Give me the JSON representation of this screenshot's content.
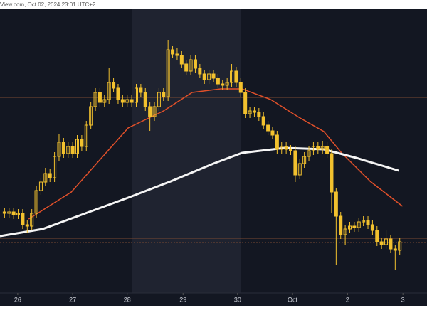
{
  "header": "View.com, Oct 02, 2024 23:01 UTC+2",
  "chart_data": {
    "type": "candlestick",
    "xlim": [
      -1,
      93
    ],
    "ylim": [
      0,
      100
    ],
    "xticks": [
      {
        "value": 2.9,
        "label": "26"
      },
      {
        "value": 15,
        "label": "27"
      },
      {
        "value": 27,
        "label": "28"
      },
      {
        "value": 39.3,
        "label": "29"
      },
      {
        "value": 51.3,
        "label": "30"
      },
      {
        "value": 63.4,
        "label": "Oct"
      },
      {
        "value": 75.5,
        "label": "2"
      },
      {
        "value": 87.7,
        "label": "3"
      }
    ],
    "color": "#f2c12e",
    "open": [
      30.5,
      30,
      30.5,
      29.5,
      30,
      26,
      25.5,
      30,
      38,
      41,
      44,
      42.5,
      50,
      55,
      51,
      53.5,
      51,
      56,
      53.5,
      61,
      67.5,
      72.5,
      69,
      70,
      76,
      74,
      70,
      69,
      70,
      69,
      74,
      72.5,
      67.5,
      64,
      67.5,
      72.5,
      71,
      87.5,
      86,
      85.5,
      82.5,
      80,
      84,
      81,
      79,
      77,
      79,
      77.5,
      75.5,
      75,
      76,
      80,
      76,
      72.5,
      65,
      66,
      65.5,
      64,
      61,
      59,
      57.5,
      52.5,
      53.5,
      52.5,
      52,
      43.5,
      47.5,
      50,
      52,
      53.5,
      52.5,
      53.5,
      51,
      37.5,
      29,
      22.5,
      24.5,
      25.5,
      25,
      27,
      27.5,
      26,
      24,
      20,
      19,
      21,
      17.5,
      17
    ],
    "high": [
      32,
      32,
      32,
      31.5,
      31.5,
      27.5,
      31.5,
      39.5,
      42.5,
      46,
      45.5,
      51.5,
      58,
      56.5,
      55,
      55,
      57.5,
      57.5,
      62.5,
      69,
      74,
      74,
      71.5,
      81,
      77.5,
      75.5,
      71.5,
      71.5,
      71.5,
      75.5,
      75.5,
      74,
      69,
      69,
      74,
      74,
      91,
      89,
      88,
      87,
      84,
      85.5,
      85.5,
      82.5,
      80.5,
      80.5,
      80.5,
      79,
      77,
      77.5,
      82.5,
      81.5,
      77.5,
      74,
      67.5,
      67.5,
      67,
      65.5,
      62.5,
      60.5,
      59,
      55,
      55,
      54,
      53.5,
      49,
      51.5,
      53.5,
      55,
      55,
      55.5,
      55,
      52.5,
      39,
      30.5,
      26,
      27,
      27,
      28.5,
      29,
      29,
      27.5,
      25.5,
      21.5,
      24,
      22.5,
      19,
      21.5
    ],
    "low": [
      28.5,
      28.5,
      28,
      28,
      24.5,
      23,
      24,
      28.5,
      36.5,
      39.5,
      41,
      41,
      48.5,
      49.5,
      49.5,
      49.5,
      49.5,
      52,
      52,
      59.5,
      66,
      67.5,
      67.5,
      68.5,
      72.5,
      68.5,
      67.5,
      67.5,
      67.5,
      67.5,
      71,
      66,
      59,
      62.5,
      66,
      69.5,
      69.5,
      84.5,
      84,
      81,
      78.5,
      78.5,
      79.5,
      77.5,
      75.5,
      75.5,
      76,
      74,
      73.5,
      73.5,
      74.5,
      74.5,
      71,
      63.5,
      63.5,
      64,
      62.5,
      59.5,
      57.5,
      56,
      51,
      51,
      51,
      50.5,
      41,
      42,
      46,
      48.5,
      50.5,
      51,
      51,
      49.5,
      30,
      12,
      21,
      19,
      23,
      23.5,
      23.5,
      25.5,
      24.5,
      22.5,
      18.5,
      17.5,
      17.5,
      16,
      10,
      15.5
    ],
    "close": [
      30,
      30.5,
      29.5,
      30,
      26,
      25.5,
      30,
      38,
      41,
      44,
      42.5,
      50,
      55,
      51,
      53.5,
      51,
      56,
      53.5,
      61,
      67.5,
      72.5,
      69,
      70,
      76,
      74,
      70,
      69,
      70,
      69,
      74,
      72.5,
      67.5,
      64,
      67.5,
      72.5,
      71,
      87.5,
      86,
      85.5,
      82.5,
      80,
      84,
      81,
      79,
      77,
      79,
      77.5,
      75.5,
      75,
      76,
      80,
      76,
      72.5,
      65,
      66,
      65.5,
      64,
      61,
      59,
      57.5,
      52.5,
      53.5,
      52.5,
      52,
      43.5,
      47.5,
      50,
      52,
      53.5,
      52.5,
      53.5,
      51,
      37.5,
      29,
      22.5,
      24.5,
      25.5,
      25,
      27,
      27.5,
      26,
      24,
      20,
      19,
      21,
      17.5,
      17,
      20
    ],
    "series": [
      {
        "color": "#e0502a",
        "width": 1.5,
        "x": [
          5.3,
          14.7,
          27.2,
          35,
          41.3,
          47.6,
          52.3,
          58.6,
          64.8,
          70.3,
          74.2,
          80.5,
          87.6
        ],
        "values": [
          28,
          37.5,
          60,
          66,
          72.5,
          73.75,
          73.75,
          70,
          63.75,
          58.75,
          51.25,
          41.25,
          32.5
        ]
      },
      {
        "color": "#f5f5f5",
        "width": 3,
        "x": [
          -1,
          8.4,
          17.8,
          27.2,
          36.6,
          46,
          52.3,
          61.7,
          70.3,
          77.4,
          86.8
        ],
        "values": [
          22,
          24.5,
          30,
          35.5,
          41.25,
          47.5,
          51.25,
          53,
          52.5,
          49.5,
          45
        ]
      }
    ],
    "levels": [
      70.75,
      21.25,
      19.75
    ],
    "level_color": "#7a4a32"
  }
}
